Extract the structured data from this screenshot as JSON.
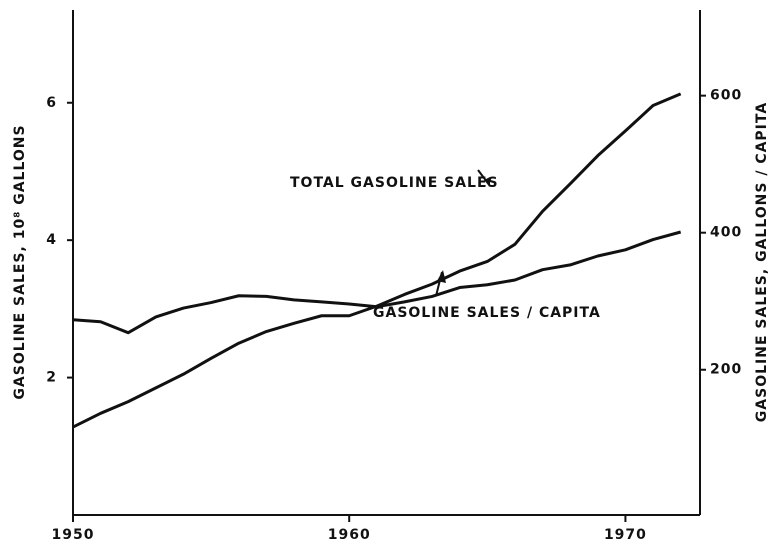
{
  "chart_data": {
    "type": "line",
    "y_label": "GASOLINE SALES, 10⁸ GALLONS",
    "y2_label": "GASOLINE SALES, GALLONS / CAPITA",
    "annotations": [
      "TOTAL GASOLINE SALES",
      "GASOLINE SALES / CAPITA"
    ],
    "x": [
      1950,
      1951,
      1952,
      1953,
      1954,
      1955,
      1956,
      1957,
      1958,
      1959,
      1960,
      1961,
      1962,
      1963,
      1964,
      1965,
      1966,
      1967,
      1968,
      1969,
      1970,
      1971,
      1972
    ],
    "series": [
      {
        "name": "TOTAL GASOLINE SALES",
        "color": "#111111",
        "values": [
          1.28,
          1.48,
          1.65,
          1.85,
          2.05,
          2.28,
          2.5,
          2.67,
          2.79,
          2.9,
          2.9,
          3.04,
          3.21,
          3.36,
          3.55,
          3.69,
          3.94,
          4.42,
          4.82,
          5.23,
          5.59,
          5.96,
          6.13
        ]
      },
      {
        "name": "GASOLINE SALES / CAPITA",
        "color": "#111111",
        "axis": "y2",
        "values": [
          273,
          270,
          254,
          277,
          290,
          298,
          308,
          307,
          302,
          299,
          296,
          292,
          299,
          307,
          320,
          324,
          331,
          346,
          353,
          366,
          375,
          390,
          401
        ]
      }
    ],
    "xlim": [
      1950,
      1972.7
    ],
    "xticks": [
      1950,
      1960,
      1970
    ],
    "ylim": [
      0,
      7.35
    ],
    "yticks": [
      2,
      4,
      6
    ],
    "y2lim": [
      -12,
      725
    ],
    "y2ticks": [
      200,
      400,
      600
    ]
  }
}
